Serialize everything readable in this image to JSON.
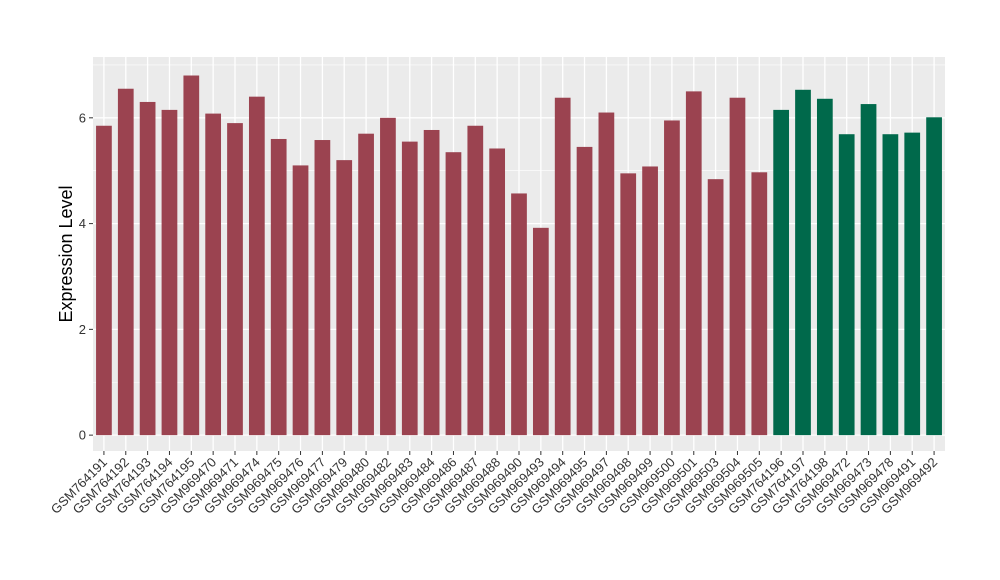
{
  "chart_data": {
    "type": "bar",
    "ylabel": "Expression Level",
    "xlabel": "",
    "ylim": [
      -0.3,
      7.15
    ],
    "yticks": [
      0,
      2,
      4,
      6
    ],
    "grid": true,
    "colors": {
      "group1": "#9b4350",
      "group2": "#00694b",
      "panel": "#ebebeb",
      "grid": "#ffffff"
    },
    "categories": [
      "GSM764191",
      "GSM764192",
      "GSM764193",
      "GSM764194",
      "GSM764195",
      "GSM969470",
      "GSM969471",
      "GSM969474",
      "GSM969475",
      "GSM969476",
      "GSM969477",
      "GSM969479",
      "GSM969480",
      "GSM969482",
      "GSM969483",
      "GSM969484",
      "GSM969486",
      "GSM969487",
      "GSM969488",
      "GSM969490",
      "GSM969493",
      "GSM969494",
      "GSM969495",
      "GSM969497",
      "GSM969498",
      "GSM969499",
      "GSM969500",
      "GSM969501",
      "GSM969503",
      "GSM969504",
      "GSM969505",
      "GSM764196",
      "GSM764197",
      "GSM764198",
      "GSM969472",
      "GSM969473",
      "GSM969478",
      "GSM969491",
      "GSM969492"
    ],
    "values": [
      5.85,
      6.55,
      6.3,
      6.15,
      6.8,
      6.08,
      5.9,
      6.4,
      5.6,
      5.1,
      5.58,
      5.2,
      5.7,
      6.0,
      5.55,
      5.77,
      5.35,
      5.85,
      5.42,
      4.57,
      3.92,
      6.38,
      5.45,
      6.1,
      4.95,
      5.08,
      5.95,
      6.5,
      4.84,
      6.38,
      4.97,
      6.15,
      6.53,
      6.36,
      5.69,
      6.26,
      5.69,
      5.72,
      6.01
    ],
    "groups": [
      1,
      1,
      1,
      1,
      1,
      1,
      1,
      1,
      1,
      1,
      1,
      1,
      1,
      1,
      1,
      1,
      1,
      1,
      1,
      1,
      1,
      1,
      1,
      1,
      1,
      1,
      1,
      1,
      1,
      1,
      1,
      2,
      2,
      2,
      2,
      2,
      2,
      2,
      2
    ]
  }
}
